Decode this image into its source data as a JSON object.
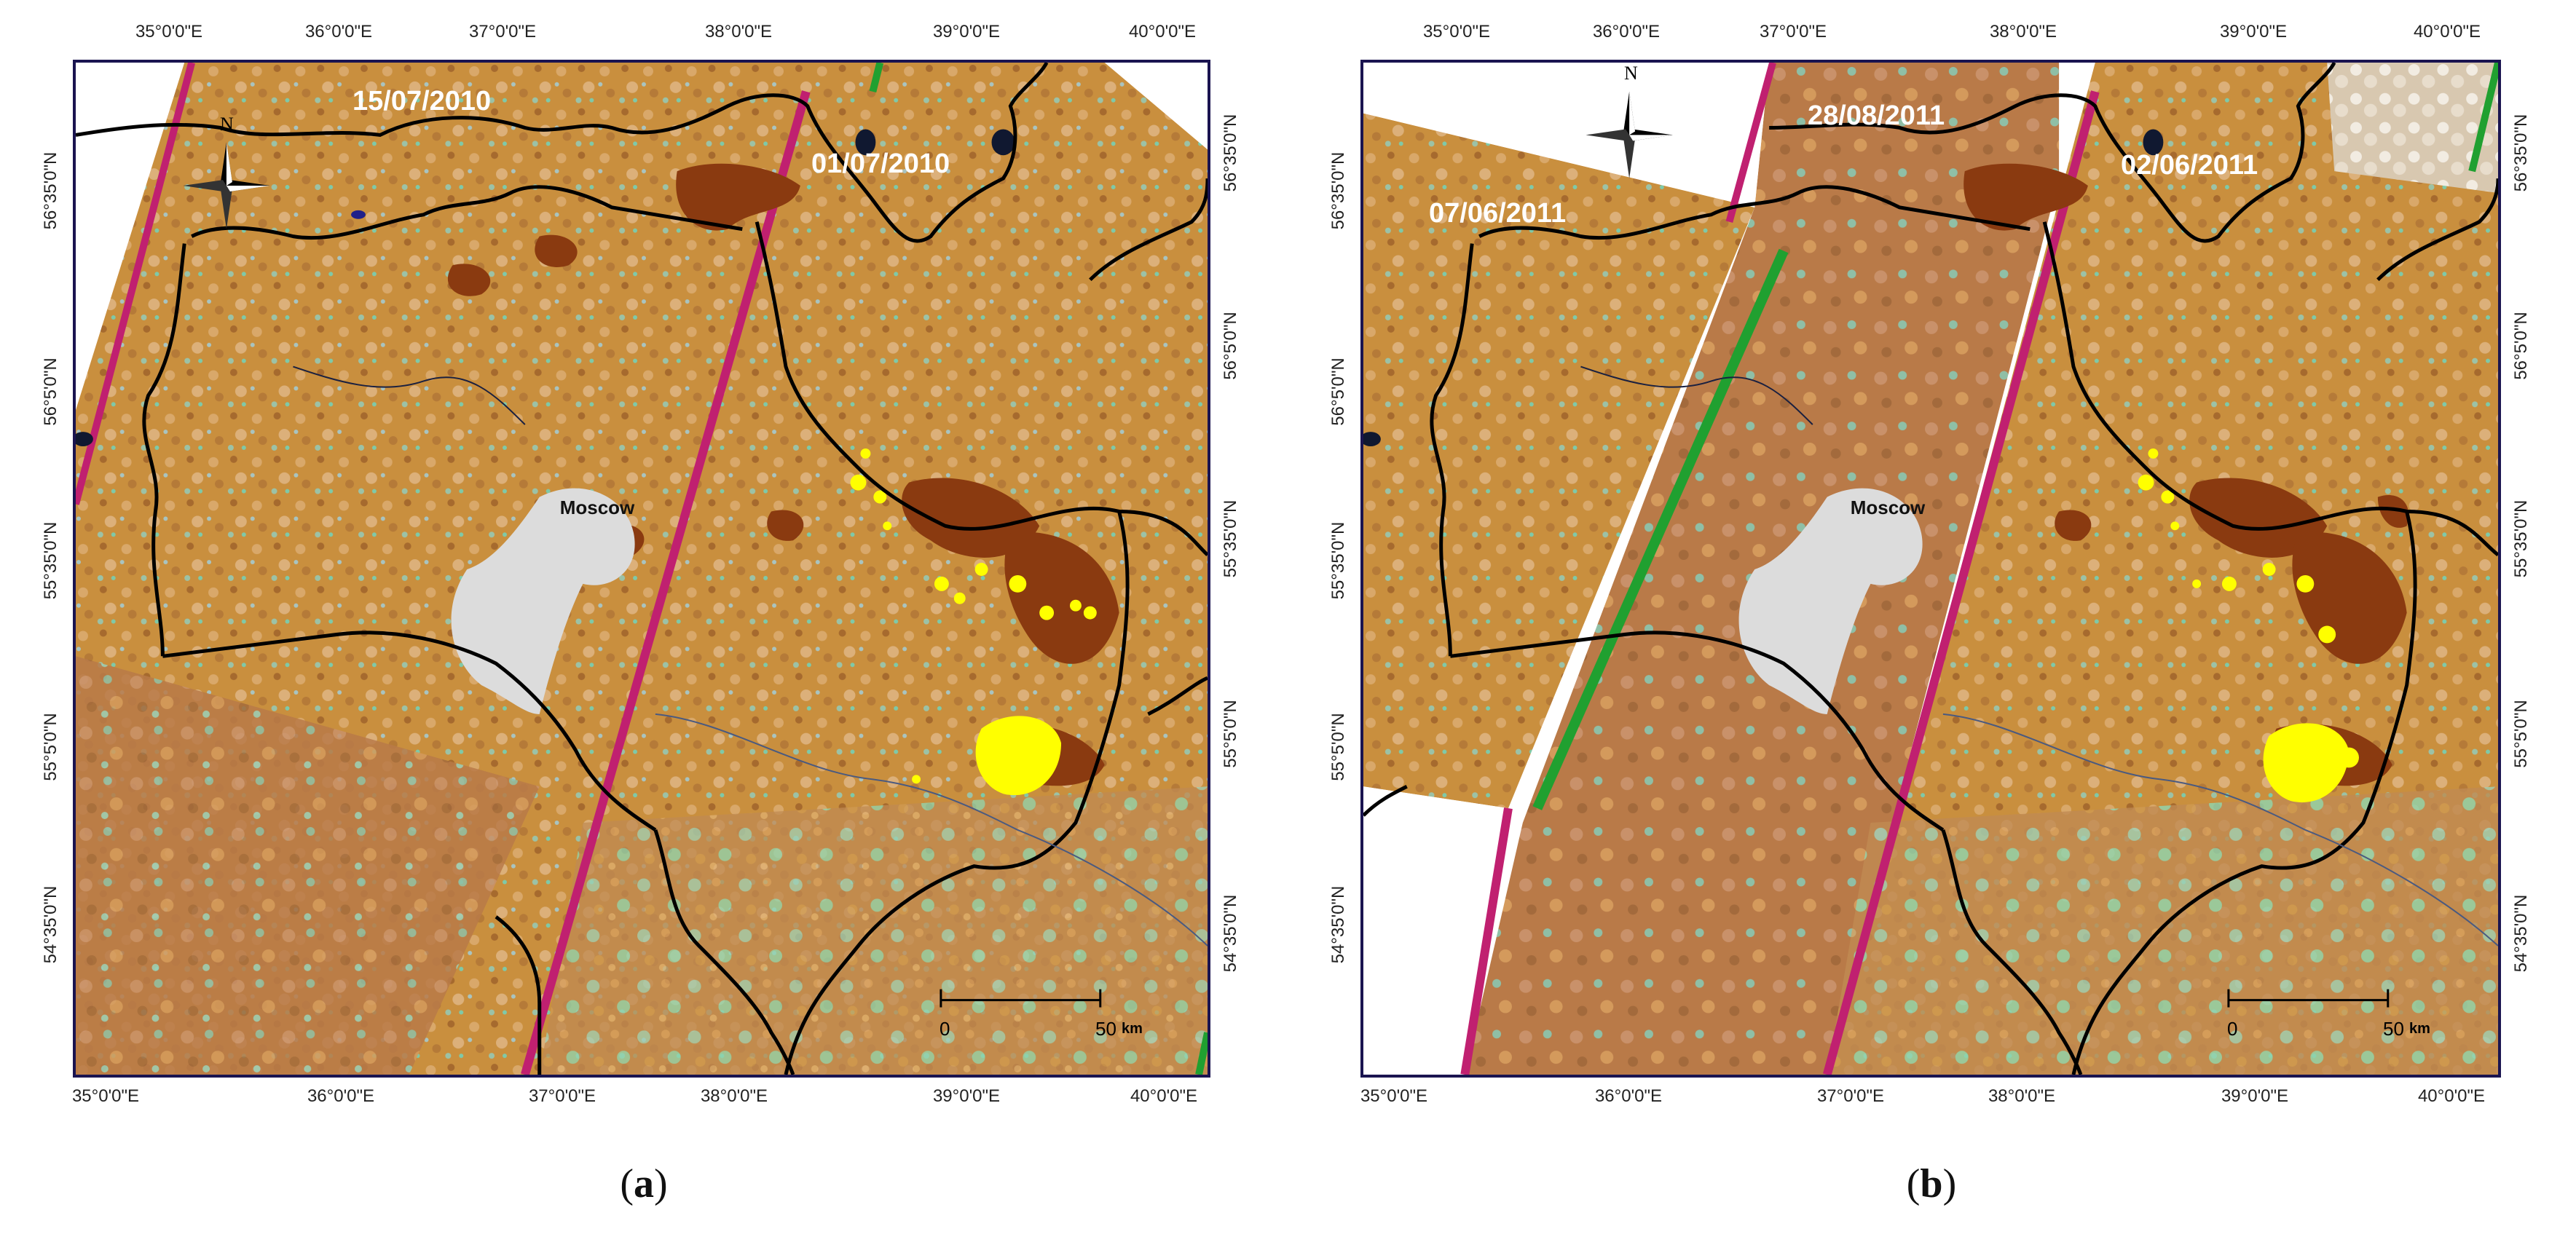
{
  "panels": [
    {
      "id": "a",
      "caption_open": "(",
      "caption_letter": "a",
      "caption_close": ")",
      "longitudes": [
        "35°0'0\"E",
        "36°0'0\"E",
        "37°0'0\"E",
        "38°0'0\"E",
        "39°0'0\"E",
        "40°0'0\"E"
      ],
      "latitudes": [
        "56°35'0\"N",
        "56°5'0\"N",
        "55°35'0\"N",
        "55°5'0\"N",
        "54°35'0\"N"
      ],
      "date_labels": [
        "15/07/2010",
        "01/07/2010"
      ],
      "city_label": "Moscow",
      "compass_label": "N",
      "scale_start": "0",
      "scale_end": "50",
      "scale_unit": "km"
    },
    {
      "id": "b",
      "caption_open": "(",
      "caption_letter": "b",
      "caption_close": ")",
      "longitudes": [
        "35°0'0\"E",
        "36°0'0\"E",
        "37°0'0\"E",
        "38°0'0\"E",
        "39°0'0\"E",
        "40°0'0\"E"
      ],
      "latitudes": [
        "56°35'0\"N",
        "56°5'0\"N",
        "55°35'0\"N",
        "55°5'0\"N",
        "54°35'0\"N"
      ],
      "date_labels": [
        "28/08/2011",
        "07/06/2011",
        "02/06/2011"
      ],
      "city_label": "Moscow",
      "compass_label": "N",
      "scale_start": "0",
      "scale_end": "50",
      "scale_unit": "km"
    }
  ],
  "colors": {
    "frame": "#1a1450",
    "terrain_base": "#c98f3e",
    "terrain_dark": "#a66a2e",
    "terrain_light": "#d9a86a",
    "vegetation": "#7fc9a8",
    "burned": "#8a3a10",
    "active_fire": "#ffff00",
    "city": "#dcdcdc",
    "boundary": "#000000",
    "swath_edge": "#c02070",
    "swath_edge_green": "#20a030"
  }
}
